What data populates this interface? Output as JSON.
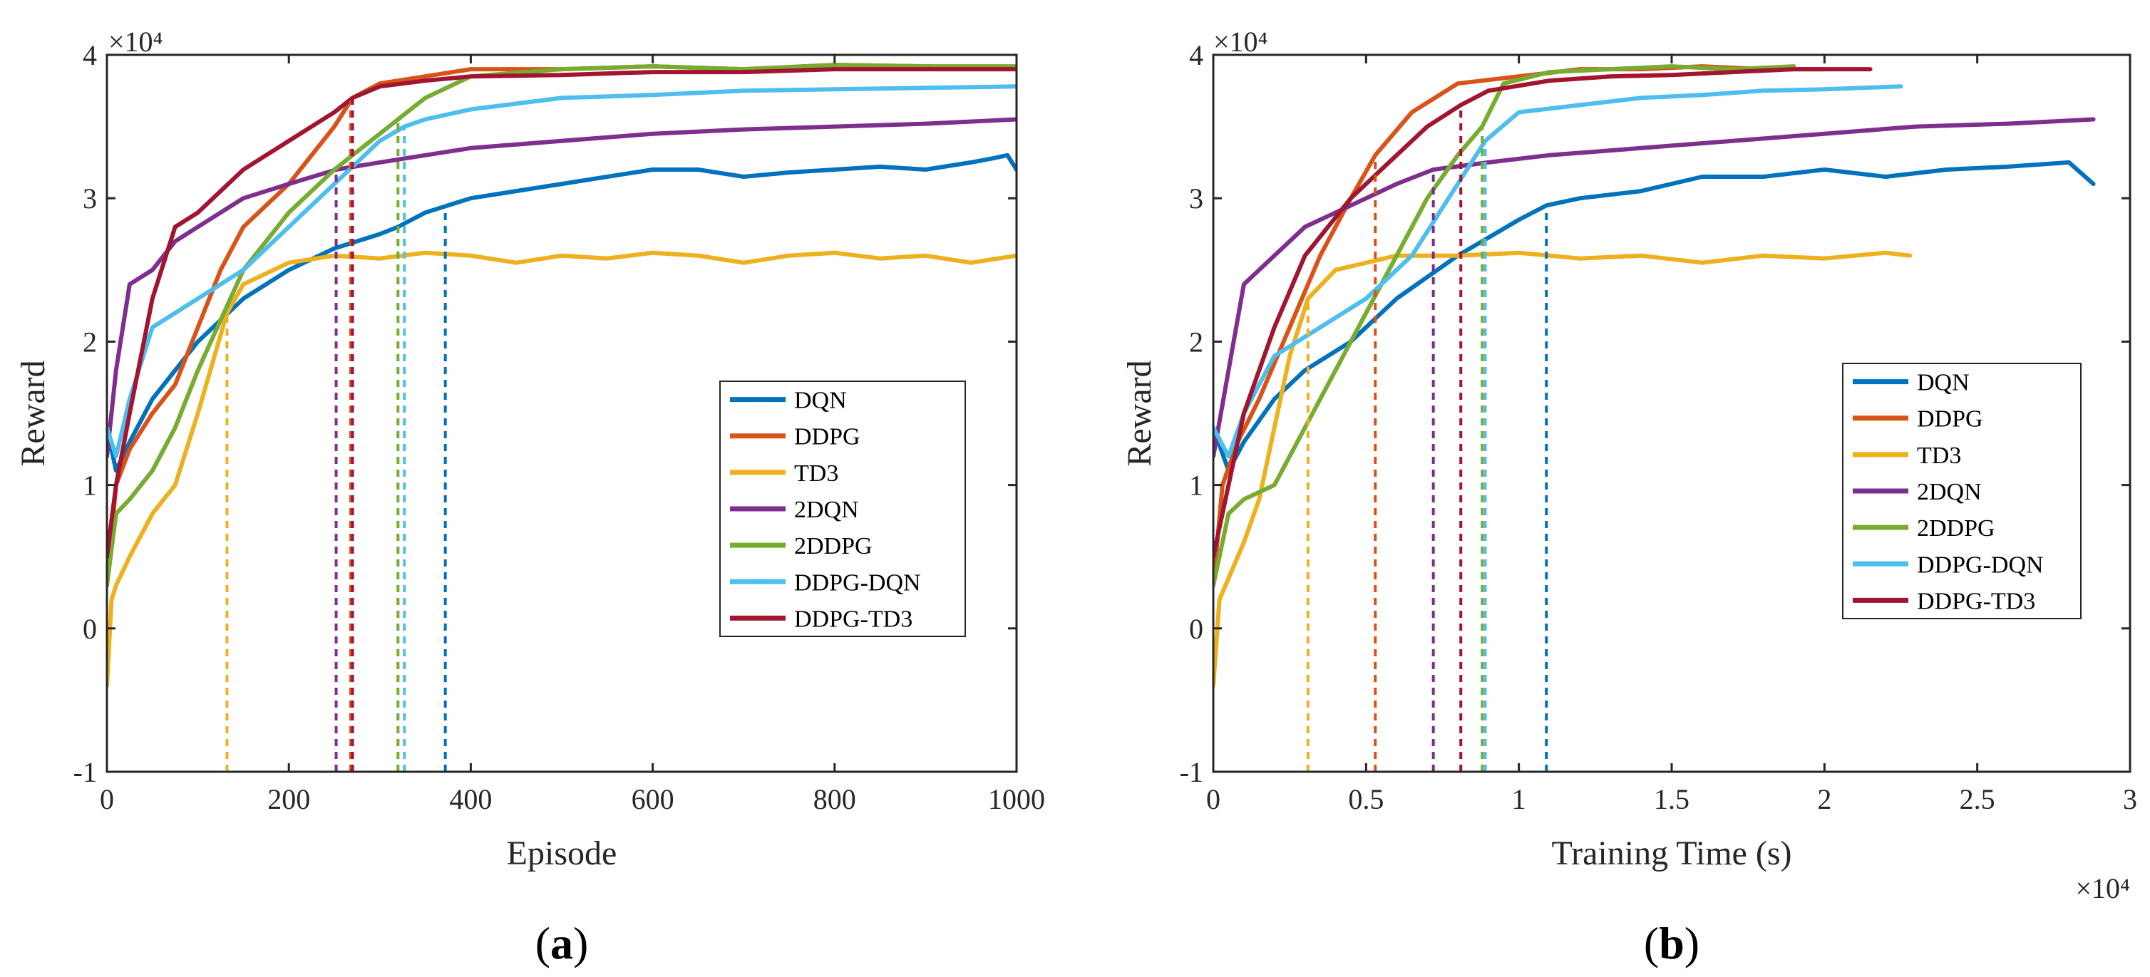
{
  "chart_data": [
    {
      "type": "line",
      "panel_label": "(a)",
      "title": "",
      "xlabel": "Episode",
      "ylabel": "Reward",
      "y_exponent_label": "×10⁴",
      "x_exponent_label": "",
      "xlim": [
        0,
        1000
      ],
      "ylim": [
        -1,
        4
      ],
      "xticks": [
        0,
        200,
        400,
        600,
        800,
        1000
      ],
      "xtick_labels": [
        "0",
        "200",
        "400",
        "600",
        "800",
        "1000"
      ],
      "yticks": [
        -1,
        0,
        1,
        2,
        3,
        4
      ],
      "ytick_labels": [
        "-1",
        "0",
        "1",
        "2",
        "3",
        "4"
      ],
      "grid": false,
      "legend_position": "right-middle",
      "series": [
        {
          "name": "DQN",
          "color": "#0072BD",
          "convergence_x": 372,
          "x": [
            0,
            10,
            25,
            50,
            75,
            100,
            150,
            200,
            250,
            300,
            320,
            350,
            400,
            450,
            500,
            550,
            600,
            650,
            700,
            750,
            800,
            850,
            900,
            950,
            975,
            990,
            1000
          ],
          "y": [
            1.4,
            1.1,
            1.3,
            1.6,
            1.8,
            2.0,
            2.3,
            2.5,
            2.65,
            2.75,
            2.8,
            2.9,
            3.0,
            3.05,
            3.1,
            3.15,
            3.2,
            3.2,
            3.15,
            3.18,
            3.2,
            3.22,
            3.2,
            3.25,
            3.28,
            3.3,
            3.2
          ]
        },
        {
          "name": "DDPG",
          "color": "#D95319",
          "convergence_x": 268,
          "x": [
            0,
            10,
            25,
            50,
            75,
            100,
            125,
            150,
            200,
            250,
            270,
            300,
            350,
            400,
            500,
            600,
            700,
            800,
            900,
            1000
          ],
          "y": [
            0.3,
            1.0,
            1.25,
            1.5,
            1.7,
            2.1,
            2.5,
            2.8,
            3.1,
            3.5,
            3.7,
            3.8,
            3.85,
            3.9,
            3.9,
            3.92,
            3.9,
            3.93,
            3.92,
            3.9
          ]
        },
        {
          "name": "TD3",
          "color": "#EDB120",
          "convergence_x": 132,
          "x": [
            0,
            5,
            10,
            25,
            50,
            75,
            100,
            132,
            150,
            200,
            250,
            300,
            350,
            400,
            450,
            500,
            550,
            600,
            650,
            700,
            750,
            800,
            850,
            900,
            950,
            1000
          ],
          "y": [
            -0.4,
            0.2,
            0.3,
            0.5,
            0.8,
            1.0,
            1.5,
            2.2,
            2.4,
            2.55,
            2.6,
            2.58,
            2.62,
            2.6,
            2.55,
            2.6,
            2.58,
            2.62,
            2.6,
            2.55,
            2.6,
            2.62,
            2.58,
            2.6,
            2.55,
            2.6
          ]
        },
        {
          "name": "2DQN",
          "color": "#7E2F8E",
          "convergence_x": 252,
          "x": [
            0,
            10,
            25,
            50,
            75,
            100,
            150,
            200,
            252,
            300,
            350,
            400,
            500,
            600,
            700,
            800,
            900,
            1000
          ],
          "y": [
            1.2,
            1.8,
            2.4,
            2.5,
            2.7,
            2.8,
            3.0,
            3.1,
            3.2,
            3.25,
            3.3,
            3.35,
            3.4,
            3.45,
            3.48,
            3.5,
            3.52,
            3.55
          ]
        },
        {
          "name": "2DDPG",
          "color": "#77AC30",
          "convergence_x": 320,
          "x": [
            0,
            10,
            25,
            50,
            75,
            100,
            150,
            200,
            250,
            300,
            320,
            350,
            400,
            500,
            600,
            700,
            800,
            900,
            1000
          ],
          "y": [
            0.3,
            0.8,
            0.9,
            1.1,
            1.4,
            1.8,
            2.5,
            2.9,
            3.2,
            3.45,
            3.55,
            3.7,
            3.85,
            3.9,
            3.92,
            3.9,
            3.93,
            3.92,
            3.92
          ]
        },
        {
          "name": "DDPG-DQN",
          "color": "#4DBEEE",
          "convergence_x": 327,
          "x": [
            0,
            10,
            25,
            50,
            75,
            100,
            150,
            200,
            250,
            300,
            327,
            350,
            400,
            500,
            600,
            700,
            800,
            900,
            1000
          ],
          "y": [
            1.4,
            1.2,
            1.6,
            2.1,
            2.2,
            2.3,
            2.5,
            2.8,
            3.1,
            3.4,
            3.5,
            3.55,
            3.62,
            3.7,
            3.72,
            3.75,
            3.76,
            3.77,
            3.78
          ]
        },
        {
          "name": "DDPG-TD3",
          "color": "#A2142F",
          "convergence_x": 270,
          "x": [
            0,
            10,
            25,
            50,
            75,
            100,
            150,
            200,
            250,
            270,
            300,
            350,
            400,
            500,
            600,
            700,
            800,
            900,
            1000
          ],
          "y": [
            0.5,
            1.0,
            1.5,
            2.3,
            2.8,
            2.9,
            3.2,
            3.4,
            3.6,
            3.7,
            3.78,
            3.82,
            3.85,
            3.86,
            3.88,
            3.88,
            3.9,
            3.9,
            3.9
          ]
        }
      ]
    },
    {
      "type": "line",
      "panel_label": "(b)",
      "title": "",
      "xlabel": "Training Time (s)",
      "ylabel": "Reward",
      "y_exponent_label": "×10⁴",
      "x_exponent_label": "×10⁴",
      "xlim": [
        0,
        3
      ],
      "ylim": [
        -1,
        4
      ],
      "xticks": [
        0,
        0.5,
        1,
        1.5,
        2,
        2.5,
        3
      ],
      "xtick_labels": [
        "0",
        "0.5",
        "1",
        "1.5",
        "2",
        "2.5",
        "3"
      ],
      "yticks": [
        -1,
        0,
        1,
        2,
        3,
        4
      ],
      "ytick_labels": [
        "-1",
        "0",
        "1",
        "2",
        "3",
        "4"
      ],
      "grid": false,
      "legend_position": "right-middle",
      "series": [
        {
          "name": "DQN",
          "color": "#0072BD",
          "convergence_x": 1.09,
          "x": [
            0,
            0.05,
            0.1,
            0.2,
            0.3,
            0.45,
            0.6,
            0.8,
            1.0,
            1.09,
            1.2,
            1.4,
            1.6,
            1.8,
            2.0,
            2.2,
            2.4,
            2.6,
            2.8,
            2.88
          ],
          "y": [
            1.4,
            1.1,
            1.3,
            1.6,
            1.8,
            2.0,
            2.3,
            2.6,
            2.85,
            2.95,
            3.0,
            3.05,
            3.15,
            3.15,
            3.2,
            3.15,
            3.2,
            3.22,
            3.25,
            3.1
          ]
        },
        {
          "name": "DDPG",
          "color": "#D95319",
          "convergence_x": 0.53,
          "x": [
            0,
            0.03,
            0.08,
            0.15,
            0.25,
            0.35,
            0.45,
            0.53,
            0.65,
            0.8,
            1.0,
            1.2,
            1.4,
            1.6,
            1.8,
            2.0
          ],
          "y": [
            0.3,
            1.0,
            1.3,
            1.6,
            2.1,
            2.6,
            3.0,
            3.3,
            3.6,
            3.8,
            3.85,
            3.9,
            3.9,
            3.92,
            3.9,
            3.9
          ]
        },
        {
          "name": "TD3",
          "color": "#EDB120",
          "convergence_x": 0.31,
          "x": [
            0,
            0.02,
            0.05,
            0.1,
            0.15,
            0.2,
            0.25,
            0.31,
            0.4,
            0.6,
            0.8,
            1.0,
            1.2,
            1.4,
            1.6,
            1.8,
            2.0,
            2.2,
            2.28
          ],
          "y": [
            -0.4,
            0.2,
            0.35,
            0.6,
            0.9,
            1.4,
            1.9,
            2.3,
            2.5,
            2.6,
            2.6,
            2.62,
            2.58,
            2.6,
            2.55,
            2.6,
            2.58,
            2.62,
            2.6
          ]
        },
        {
          "name": "2DQN",
          "color": "#7E2F8E",
          "convergence_x": 0.72,
          "x": [
            0,
            0.05,
            0.1,
            0.2,
            0.3,
            0.45,
            0.6,
            0.72,
            0.9,
            1.1,
            1.4,
            1.7,
            2.0,
            2.3,
            2.6,
            2.88
          ],
          "y": [
            1.2,
            1.8,
            2.4,
            2.6,
            2.8,
            2.95,
            3.1,
            3.2,
            3.25,
            3.3,
            3.35,
            3.4,
            3.45,
            3.5,
            3.52,
            3.55
          ]
        },
        {
          "name": "2DDPG",
          "color": "#77AC30",
          "convergence_x": 0.88,
          "x": [
            0,
            0.05,
            0.1,
            0.2,
            0.3,
            0.4,
            0.5,
            0.6,
            0.7,
            0.8,
            0.88,
            0.95,
            1.1,
            1.3,
            1.5,
            1.7,
            1.9
          ],
          "y": [
            0.3,
            0.8,
            0.9,
            1.0,
            1.4,
            1.8,
            2.2,
            2.6,
            3.0,
            3.3,
            3.5,
            3.8,
            3.88,
            3.9,
            3.92,
            3.9,
            3.92
          ]
        },
        {
          "name": "DDPG-DQN",
          "color": "#4DBEEE",
          "convergence_x": 0.89,
          "x": [
            0,
            0.05,
            0.1,
            0.2,
            0.35,
            0.5,
            0.65,
            0.8,
            0.89,
            1.0,
            1.2,
            1.4,
            1.6,
            1.8,
            2.0,
            2.25
          ],
          "y": [
            1.4,
            1.2,
            1.5,
            1.9,
            2.1,
            2.3,
            2.6,
            3.1,
            3.4,
            3.6,
            3.65,
            3.7,
            3.72,
            3.75,
            3.76,
            3.78
          ]
        },
        {
          "name": "DDPG-TD3",
          "color": "#A2142F",
          "convergence_x": 0.81,
          "x": [
            0,
            0.05,
            0.1,
            0.2,
            0.3,
            0.45,
            0.6,
            0.7,
            0.81,
            0.9,
            1.1,
            1.3,
            1.5,
            1.7,
            1.9,
            2.15
          ],
          "y": [
            0.5,
            1.0,
            1.5,
            2.1,
            2.6,
            3.0,
            3.3,
            3.5,
            3.65,
            3.75,
            3.82,
            3.85,
            3.86,
            3.88,
            3.9,
            3.9
          ]
        }
      ]
    }
  ]
}
